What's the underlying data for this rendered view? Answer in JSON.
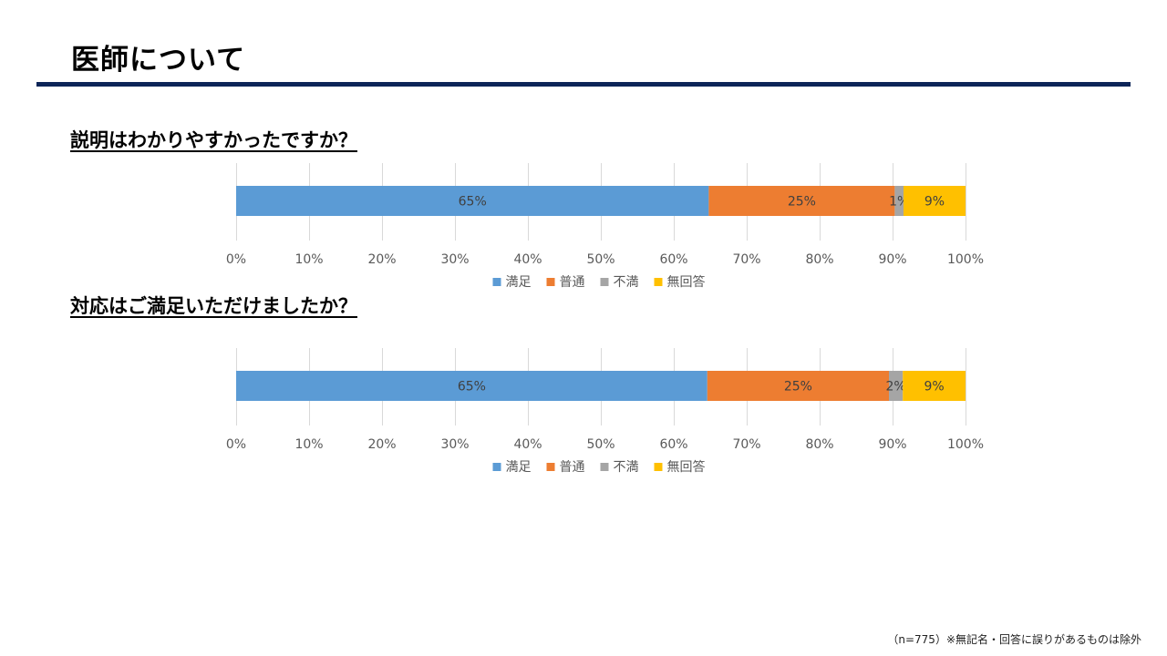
{
  "page": {
    "title": "医師について",
    "footnote": "（n=775）※無記名・回答に誤りがあるものは除外"
  },
  "colors": {
    "title_rule": "#0d2558",
    "gridline": "#d9d9d9",
    "tick_text": "#595959",
    "label_text": "#404040"
  },
  "chart_data": [
    {
      "type": "bar",
      "orientation": "horizontal",
      "stacked": true,
      "title": "説明はわかりやすかったですか？",
      "xlim": [
        0,
        100
      ],
      "x_ticks": [
        "0%",
        "10%",
        "20%",
        "30%",
        "40%",
        "50%",
        "60%",
        "70%",
        "80%",
        "90%",
        "100%"
      ],
      "grid": true,
      "legend_position": "bottom",
      "series": [
        {
          "name": "満足",
          "value": 64.8,
          "label": "65%",
          "color": "#5b9bd5"
        },
        {
          "name": "普通",
          "value": 25.5,
          "label": "25%",
          "color": "#ed7d31"
        },
        {
          "name": "不満",
          "value": 1.2,
          "label": "1%",
          "color": "#a5a5a5"
        },
        {
          "name": "無回答",
          "value": 8.5,
          "label": "9%",
          "color": "#ffc000"
        }
      ]
    },
    {
      "type": "bar",
      "orientation": "horizontal",
      "stacked": true,
      "title": "対応はご満足いただけましたか？",
      "xlim": [
        0,
        100
      ],
      "x_ticks": [
        "0%",
        "10%",
        "20%",
        "30%",
        "40%",
        "50%",
        "60%",
        "70%",
        "80%",
        "90%",
        "100%"
      ],
      "grid": true,
      "legend_position": "bottom",
      "series": [
        {
          "name": "満足",
          "value": 64.6,
          "label": "65%",
          "color": "#5b9bd5"
        },
        {
          "name": "普通",
          "value": 24.9,
          "label": "25%",
          "color": "#ed7d31"
        },
        {
          "name": "不満",
          "value": 1.9,
          "label": "2%",
          "color": "#a5a5a5"
        },
        {
          "name": "無回答",
          "value": 8.6,
          "label": "9%",
          "color": "#ffc000"
        }
      ]
    }
  ]
}
